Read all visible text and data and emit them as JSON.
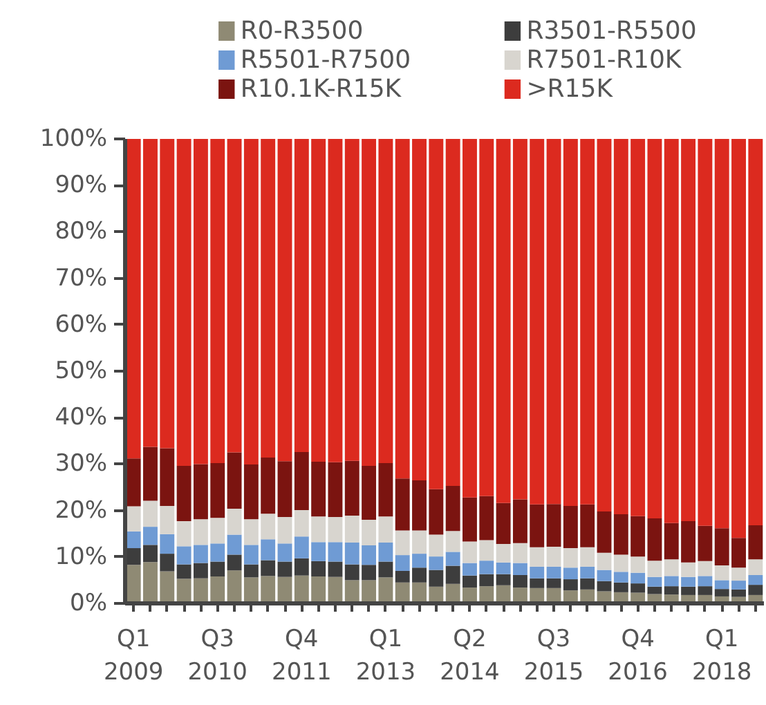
{
  "chart_data": {
    "type": "bar",
    "stacked": true,
    "categories": [
      "Q1\n2009",
      null,
      null,
      null,
      null,
      "Q3\n2010",
      null,
      null,
      null,
      null,
      "Q4\n2011",
      null,
      null,
      null,
      null,
      "Q1\n2013",
      null,
      null,
      null,
      null,
      "Q2\n2014",
      null,
      null,
      null,
      null,
      "Q3\n2015",
      null,
      null,
      null,
      null,
      "Q4\n2016",
      null,
      null,
      null,
      null,
      "Q1\n2018",
      null,
      null
    ],
    "series": [
      {
        "name": "R0-R3500",
        "color": "#8f8a74",
        "values": [
          8.3,
          8.9,
          6.9,
          5.3,
          5.4,
          5.8,
          7.1,
          5.6,
          5.9,
          5.7,
          6.0,
          5.8,
          5.7,
          5.0,
          5.0,
          5.6,
          4.5,
          4.5,
          3.6,
          4.2,
          3.4,
          3.7,
          3.9,
          3.4,
          3.3,
          3.3,
          2.8,
          3.0,
          2.6,
          2.4,
          2.3,
          2.0,
          1.9,
          1.8,
          1.8,
          1.5,
          1.4,
          1.8
        ]
      },
      {
        "name": "R3501-R5500",
        "color": "#3d3d3d",
        "values": [
          3.6,
          3.7,
          3.8,
          3.1,
          3.3,
          3.2,
          3.4,
          2.8,
          3.4,
          3.3,
          3.7,
          3.3,
          3.3,
          3.4,
          3.3,
          3.4,
          2.5,
          3.2,
          3.6,
          3.9,
          2.6,
          2.6,
          2.4,
          2.7,
          2.1,
          2.1,
          2.4,
          2.4,
          2.2,
          2.1,
          2.0,
          1.6,
          1.8,
          1.8,
          1.9,
          1.6,
          1.6,
          2.2
        ]
      },
      {
        "name": "R5501-R7500",
        "color": "#6f9bd4",
        "values": [
          3.6,
          3.9,
          4.2,
          3.9,
          3.9,
          3.9,
          4.3,
          4.2,
          4.5,
          3.9,
          4.7,
          4.1,
          4.2,
          4.7,
          4.2,
          4.1,
          3.4,
          3.0,
          2.9,
          3.0,
          2.7,
          2.9,
          2.5,
          2.6,
          2.5,
          2.5,
          2.5,
          2.5,
          2.4,
          2.3,
          2.3,
          2.1,
          2.2,
          2.1,
          2.2,
          1.9,
          1.9,
          2.1
        ]
      },
      {
        "name": "R7501-R10K",
        "color": "#d8d5cf",
        "values": [
          5.4,
          5.6,
          6.1,
          5.4,
          5.5,
          5.5,
          5.6,
          5.5,
          5.5,
          5.7,
          5.7,
          5.5,
          5.4,
          5.8,
          5.5,
          5.6,
          5.3,
          5.0,
          4.7,
          4.5,
          4.6,
          4.4,
          4.0,
          4.3,
          4.2,
          4.3,
          4.2,
          4.2,
          3.7,
          3.7,
          3.5,
          3.5,
          3.6,
          3.1,
          3.2,
          3.2,
          2.8,
          3.4
        ]
      },
      {
        "name": "R10.1K-R15K",
        "color": "#7b1410",
        "values": [
          10.3,
          11.6,
          12.4,
          11.9,
          11.9,
          11.8,
          12.1,
          11.8,
          12.1,
          12.0,
          12.5,
          11.8,
          11.8,
          11.8,
          11.6,
          11.5,
          11.2,
          10.8,
          9.8,
          9.7,
          9.5,
          9.5,
          8.8,
          9.4,
          9.2,
          9.2,
          9.1,
          9.2,
          8.9,
          8.7,
          8.7,
          9.1,
          7.8,
          8.9,
          7.6,
          8.0,
          6.4,
          7.3
        ]
      },
      {
        "name": ">R15K",
        "color": "#dc2a1f",
        "values": [
          68.8,
          66.3,
          66.6,
          70.4,
          70.0,
          69.8,
          67.5,
          70.1,
          68.6,
          69.4,
          67.4,
          69.5,
          69.6,
          69.3,
          70.4,
          69.8,
          73.1,
          73.5,
          75.4,
          74.7,
          77.2,
          76.9,
          78.4,
          77.6,
          78.7,
          78.6,
          79.0,
          78.7,
          80.2,
          80.8,
          81.2,
          81.7,
          82.7,
          82.3,
          83.3,
          83.8,
          85.9,
          83.2
        ]
      }
    ],
    "ylim": [
      0,
      100
    ],
    "yticks": [
      {
        "value": 0,
        "label": "0%"
      },
      {
        "value": 10,
        "label": "10%"
      },
      {
        "value": 20,
        "label": "20%"
      },
      {
        "value": 30,
        "label": "30%"
      },
      {
        "value": 40,
        "label": "40%"
      },
      {
        "value": 50,
        "label": "50%"
      },
      {
        "value": 60,
        "label": "60%"
      },
      {
        "value": 70,
        "label": "70%"
      },
      {
        "value": 80,
        "label": "80%"
      },
      {
        "value": 90,
        "label": "90%"
      },
      {
        "value": 100,
        "label": "100%"
      }
    ],
    "grid": false,
    "legend": "top"
  }
}
